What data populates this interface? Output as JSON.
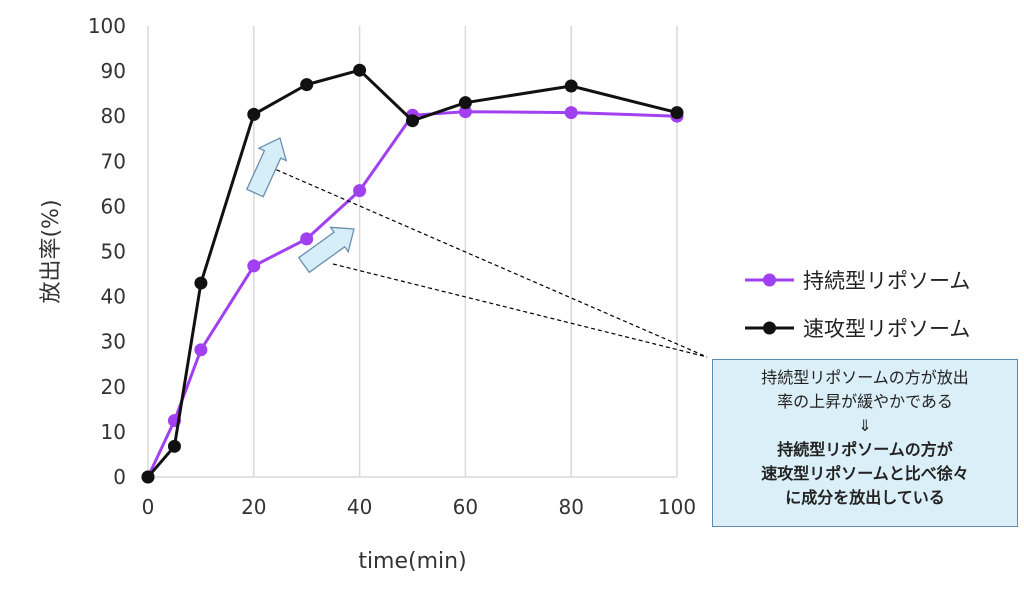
{
  "chart_data": {
    "type": "line",
    "xlabel": "time(min)",
    "ylabel": "放出率(%)",
    "xlim": [
      0,
      100
    ],
    "ylim": [
      0,
      100
    ],
    "xticks": [
      0,
      20,
      40,
      60,
      80,
      100
    ],
    "yticks": [
      0,
      10,
      20,
      30,
      40,
      50,
      60,
      70,
      80,
      90,
      100
    ],
    "grid": "vertical",
    "legend_position": "right",
    "series": [
      {
        "name": "持続型リポソーム",
        "color": "#a040f0",
        "x": [
          0,
          5,
          10,
          20,
          30,
          40,
          50,
          60,
          80,
          100
        ],
        "y": [
          0,
          12.5,
          28.2,
          46.8,
          52.8,
          63.5,
          80.2,
          81.0,
          80.8,
          80.0
        ]
      },
      {
        "name": "速攻型リポソーム",
        "color": "#111111",
        "x": [
          0,
          5,
          10,
          20,
          30,
          40,
          50,
          60,
          80,
          100
        ],
        "y": [
          0,
          6.8,
          43.0,
          80.4,
          87.0,
          90.2,
          79.0,
          83.0,
          86.7,
          80.8
        ]
      }
    ]
  },
  "callout": {
    "line1": "持続型リポソームの方が放出",
    "line2": "率の上昇が緩やかである",
    "arrow": "⇓",
    "line3": "持続型リポソームの方が",
    "line4": "速攻型リポソームと比べ徐々",
    "line5": "に成分を放出している"
  },
  "colors": {
    "arrow_fill": "#d6eef8",
    "arrow_stroke": "#6a8fb0"
  }
}
